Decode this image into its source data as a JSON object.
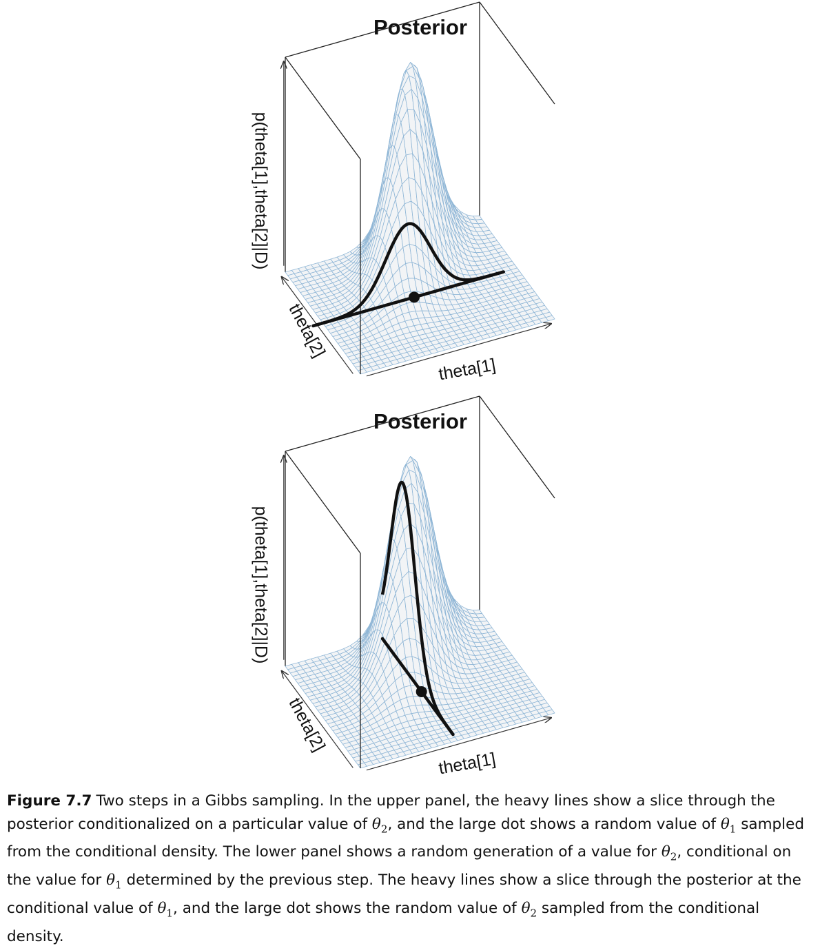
{
  "panels": [
    {
      "title": "Posterior",
      "zlabel": "p(theta[1],theta[2]|D)",
      "ylabel": "theta[2]",
      "xlabel": "theta[1]",
      "slice": "theta[2]"
    },
    {
      "title": "Posterior",
      "zlabel": "p(theta[1],theta[2]|D)",
      "ylabel": "theta[2]",
      "xlabel": "theta[1]",
      "slice": "theta[1]"
    }
  ],
  "colors": {
    "surface_mesh": "#8fb6d6",
    "surface_fill": "#f2f4f6",
    "heavy_line": "#111111",
    "box": "#222222"
  },
  "caption": {
    "label": "Figure 7.7",
    "parts": [
      "Two steps in a Gibbs sampling. In the upper panel, the heavy lines show a slice through the posterior conditionalized on a particular value of ",
      ", and the large dot shows a random value of ",
      " sampled from the conditional density. The lower panel shows a random generation of a value for ",
      ", conditional on the value for ",
      " determined by the previous step. The heavy lines show a slice through the posterior at the conditional value of ",
      ", and the large dot shows the random value of ",
      " sampled from the conditional density."
    ],
    "theta1": "θ1",
    "theta2": "θ2"
  }
}
